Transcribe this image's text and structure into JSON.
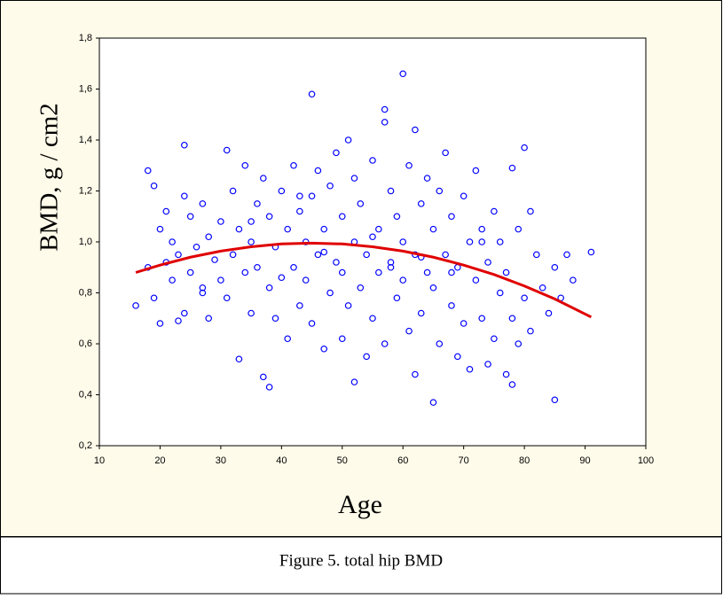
{
  "chart_data": {
    "type": "scatter",
    "x": [
      16,
      18,
      18,
      19,
      19,
      20,
      20,
      21,
      21,
      22,
      22,
      23,
      24,
      24,
      24,
      25,
      25,
      26,
      27,
      27,
      28,
      28,
      29,
      30,
      30,
      31,
      31,
      32,
      32,
      33,
      33,
      34,
      34,
      35,
      35,
      36,
      36,
      37,
      37,
      38,
      38,
      38,
      39,
      39,
      40,
      40,
      41,
      41,
      42,
      42,
      43,
      43,
      44,
      44,
      45,
      45,
      45,
      46,
      46,
      47,
      47,
      48,
      48,
      49,
      49,
      50,
      50,
      50,
      51,
      51,
      52,
      52,
      52,
      53,
      53,
      54,
      54,
      55,
      55,
      56,
      56,
      57,
      57,
      57,
      58,
      58,
      59,
      59,
      60,
      60,
      60,
      61,
      61,
      62,
      62,
      62,
      63,
      63,
      64,
      64,
      65,
      65,
      65,
      66,
      66,
      67,
      67,
      68,
      68,
      69,
      69,
      70,
      70,
      71,
      71,
      72,
      72,
      73,
      73,
      74,
      74,
      75,
      75,
      76,
      76,
      77,
      77,
      78,
      78,
      78,
      79,
      79,
      80,
      80,
      81,
      81,
      82,
      83,
      84,
      85,
      85,
      86,
      87,
      88,
      91,
      23,
      27,
      35,
      43,
      47,
      55,
      58,
      63,
      68,
      73
    ],
    "values": [
      0.75,
      1.28,
      0.9,
      1.22,
      0.78,
      1.05,
      0.68,
      0.92,
      1.12,
      0.85,
      1.0,
      0.95,
      1.38,
      0.72,
      1.18,
      1.1,
      0.88,
      0.98,
      0.8,
      1.15,
      1.02,
      0.7,
      0.93,
      1.08,
      0.85,
      1.36,
      0.78,
      1.2,
      0.95,
      0.54,
      1.05,
      1.3,
      0.88,
      1.0,
      0.72,
      1.15,
      0.9,
      0.47,
      1.25,
      0.43,
      0.82,
      1.1,
      0.98,
      0.7,
      1.2,
      0.86,
      1.05,
      0.62,
      1.3,
      0.9,
      0.75,
      1.12,
      1.0,
      0.85,
      1.58,
      0.68,
      1.18,
      0.95,
      1.28,
      0.58,
      1.05,
      0.8,
      1.22,
      0.92,
      1.35,
      0.62,
      1.1,
      0.88,
      1.4,
      0.75,
      0.45,
      1.0,
      1.25,
      0.82,
      1.15,
      0.55,
      0.95,
      1.32,
      0.7,
      1.05,
      0.88,
      1.52,
      1.47,
      0.6,
      1.2,
      0.92,
      0.78,
      1.1,
      1.66,
      0.85,
      1.0,
      0.65,
      1.3,
      1.44,
      0.48,
      0.95,
      1.15,
      0.72,
      0.88,
      1.25,
      0.37,
      0.82,
      1.05,
      1.2,
      0.6,
      0.95,
      1.35,
      0.75,
      1.1,
      0.55,
      0.9,
      1.18,
      0.68,
      1.0,
      0.5,
      0.85,
      1.28,
      0.7,
      1.05,
      0.52,
      0.92,
      1.12,
      0.62,
      0.8,
      1.0,
      0.48,
      0.88,
      1.29,
      0.44,
      0.7,
      1.05,
      0.6,
      1.37,
      0.78,
      1.12,
      0.65,
      0.95,
      0.82,
      0.72,
      0.9,
      0.38,
      0.78,
      0.95,
      0.85,
      0.96,
      0.69,
      0.82,
      1.08,
      1.18,
      0.96,
      1.02,
      0.9,
      0.94,
      0.88,
      1.0
    ],
    "color": "#0000ff",
    "fit": {
      "x": [
        16,
        20,
        25,
        30,
        35,
        40,
        45,
        50,
        55,
        60,
        65,
        70,
        75,
        80,
        85,
        91
      ],
      "values": [
        0.88,
        0.909,
        0.94,
        0.964,
        0.981,
        0.992,
        0.995,
        0.992,
        0.981,
        0.964,
        0.94,
        0.909,
        0.872,
        0.827,
        0.776,
        0.705
      ],
      "color": "#e00000"
    },
    "xlim": [
      10,
      100
    ],
    "ylim": [
      0.2,
      1.8
    ],
    "xticks": [
      10,
      20,
      30,
      40,
      50,
      60,
      70,
      80,
      90,
      100
    ],
    "yticks": [
      {
        "value": 0.2,
        "label": "0,2"
      },
      {
        "value": 0.4,
        "label": "0,4"
      },
      {
        "value": 0.6,
        "label": "0,6"
      },
      {
        "value": 0.8,
        "label": "0,8"
      },
      {
        "value": 1.0,
        "label": "1,0"
      },
      {
        "value": 1.2,
        "label": "1,2"
      },
      {
        "value": 1.4,
        "label": "1,4"
      },
      {
        "value": 1.6,
        "label": "1,6"
      },
      {
        "value": 1.8,
        "label": "1,8"
      }
    ],
    "xlabel": "Age",
    "ylabel": "BMD, g / cm2",
    "caption": "Figure 5. total hip BMD"
  }
}
